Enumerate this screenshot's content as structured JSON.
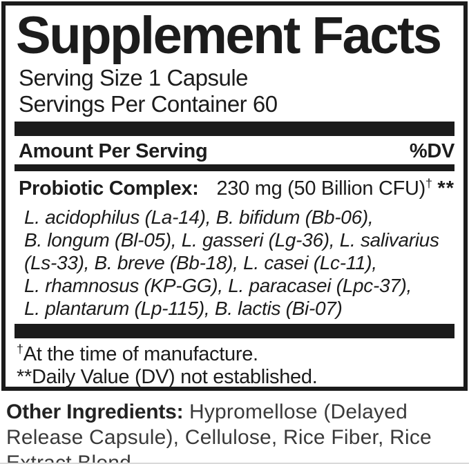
{
  "panel": {
    "title": "Supplement Facts",
    "serving_size": "Serving Size 1 Capsule",
    "servings_per_container": "Servings Per Container 60",
    "amount_per_serving_label": "Amount Per Serving",
    "dv_label": "%DV",
    "probiotic": {
      "name": "Probiotic Complex:",
      "amount": "230 mg (50 Billion CFU)",
      "amount_footnote_symbol": "†",
      "dv_value": "**",
      "strain_lines": [
        "L. acidophilus (La-14), B. bifidum (Bb-06),",
        "B. longum (Bl-05), L. gasseri (Lg-36), L. salivarius",
        "(Ls-33), B. breve (Bb-18), L. casei (Lc-11),",
        "L. rhamnosus (KP-GG), L. paracasei (Lpc-37),",
        "L. plantarum (Lp-115), B. lactis (Bi-07)"
      ]
    },
    "footnotes": {
      "dagger_symbol": "†",
      "dagger_text": "At the time of manufacture.",
      "dv_note": "**Daily Value (DV) not established."
    }
  },
  "other_ingredients": {
    "label": "Other Ingredients:",
    "lines": [
      "Hypromellose (Delayed",
      "Release Capsule), Cellulose, Rice Fiber, Rice",
      "Extract Blend."
    ]
  },
  "colors": {
    "ink": "#1b1b1b",
    "background": "#ffffff"
  }
}
